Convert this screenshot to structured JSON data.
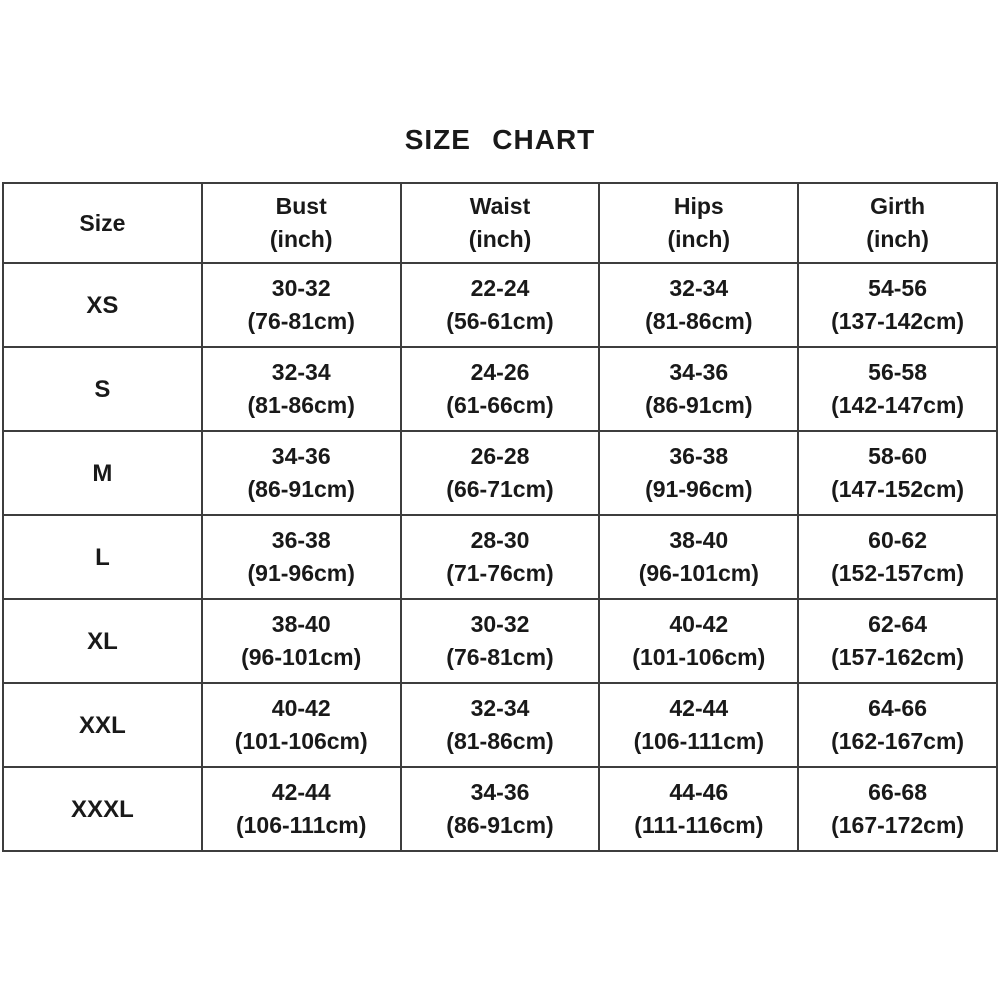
{
  "title": "SIZE CHART",
  "colors": {
    "background": "#ffffff",
    "text": "#191919",
    "border": "#3d3d3d"
  },
  "table": {
    "header": [
      {
        "line1": "Size",
        "line2": null
      },
      {
        "line1": "Bust",
        "line2": "(inch)"
      },
      {
        "line1": "Waist",
        "line2": "(inch)"
      },
      {
        "line1": "Hips",
        "line2": "(inch)"
      },
      {
        "line1": "Girth",
        "line2": "(inch)"
      }
    ],
    "rows": [
      {
        "size": "XS",
        "cells": [
          [
            "30-32",
            "(76-81cm)"
          ],
          [
            "22-24",
            "(56-61cm)"
          ],
          [
            "32-34",
            "(81-86cm)"
          ],
          [
            "54-56",
            "(137-142cm)"
          ]
        ]
      },
      {
        "size": "S",
        "cells": [
          [
            "32-34",
            "(81-86cm)"
          ],
          [
            "24-26",
            "(61-66cm)"
          ],
          [
            "34-36",
            "(86-91cm)"
          ],
          [
            "56-58",
            "(142-147cm)"
          ]
        ]
      },
      {
        "size": "M",
        "cells": [
          [
            "34-36",
            "(86-91cm)"
          ],
          [
            "26-28",
            "(66-71cm)"
          ],
          [
            "36-38",
            "(91-96cm)"
          ],
          [
            "58-60",
            "(147-152cm)"
          ]
        ]
      },
      {
        "size": "L",
        "cells": [
          [
            "36-38",
            "(91-96cm)"
          ],
          [
            "28-30",
            "(71-76cm)"
          ],
          [
            "38-40",
            "(96-101cm)"
          ],
          [
            "60-62",
            "(152-157cm)"
          ]
        ]
      },
      {
        "size": "XL",
        "cells": [
          [
            "38-40",
            "(96-101cm)"
          ],
          [
            "30-32",
            "(76-81cm)"
          ],
          [
            "40-42",
            "(101-106cm)"
          ],
          [
            "62-64",
            "(157-162cm)"
          ]
        ]
      },
      {
        "size": "XXL",
        "cells": [
          [
            "40-42",
            "(101-106cm)"
          ],
          [
            "32-34",
            "(81-86cm)"
          ],
          [
            "42-44",
            "(106-111cm)"
          ],
          [
            "64-66",
            "(162-167cm)"
          ]
        ]
      },
      {
        "size": "XXXL",
        "cells": [
          [
            "42-44",
            "(106-111cm)"
          ],
          [
            "34-36",
            "(86-91cm)"
          ],
          [
            "44-46",
            "(111-116cm)"
          ],
          [
            "66-68",
            "(167-172cm)"
          ]
        ]
      }
    ]
  },
  "chart_data": {
    "type": "table",
    "title": "SIZE CHART",
    "columns": [
      "Size",
      "Bust (inch)",
      "Waist (inch)",
      "Hips (inch)",
      "Girth (inch)"
    ],
    "rows": [
      [
        "XS",
        "30-32 (76-81cm)",
        "22-24 (56-61cm)",
        "32-34 (81-86cm)",
        "54-56 (137-142cm)"
      ],
      [
        "S",
        "32-34 (81-86cm)",
        "24-26 (61-66cm)",
        "34-36 (86-91cm)",
        "56-58 (142-147cm)"
      ],
      [
        "M",
        "34-36 (86-91cm)",
        "26-28 (66-71cm)",
        "36-38 (91-96cm)",
        "58-60 (147-152cm)"
      ],
      [
        "L",
        "36-38 (91-96cm)",
        "28-30 (71-76cm)",
        "38-40 (96-101cm)",
        "60-62 (152-157cm)"
      ],
      [
        "XL",
        "38-40 (96-101cm)",
        "30-32 (76-81cm)",
        "40-42 (101-106cm)",
        "62-64 (157-162cm)"
      ],
      [
        "XXL",
        "40-42 (101-106cm)",
        "32-34 (81-86cm)",
        "42-44 (106-111cm)",
        "64-66 (162-167cm)"
      ],
      [
        "XXXL",
        "42-44 (106-111cm)",
        "34-36 (86-91cm)",
        "44-46 (111-116cm)",
        "66-68 (167-172cm)"
      ]
    ]
  }
}
